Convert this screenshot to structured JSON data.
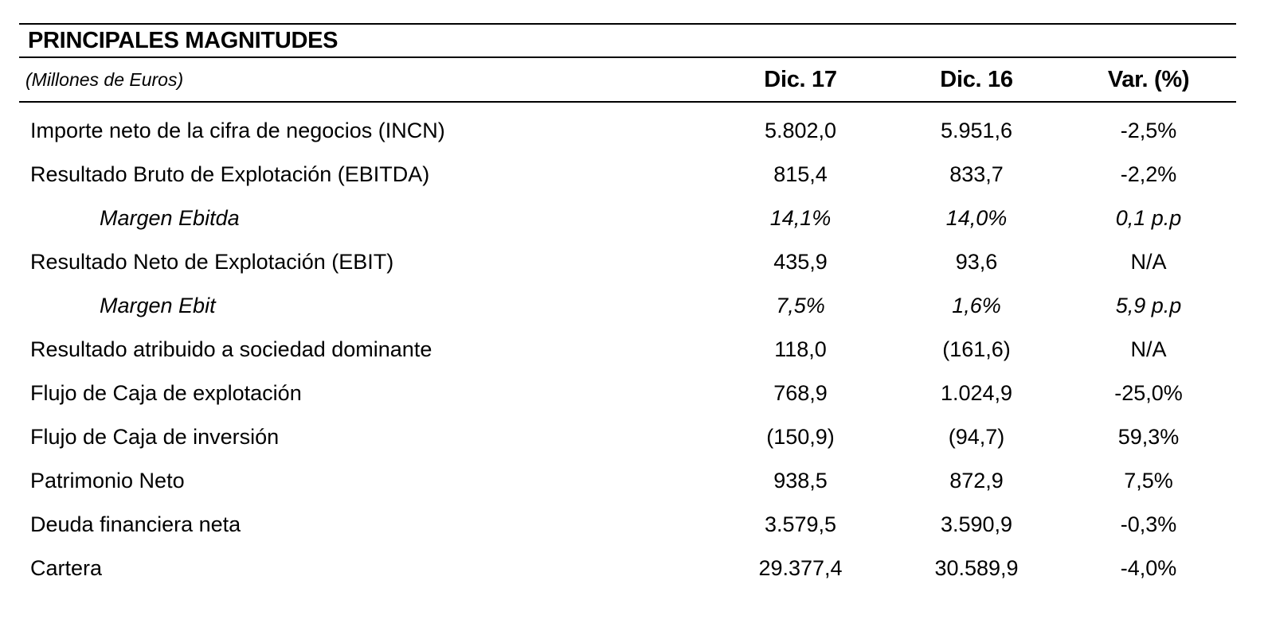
{
  "table": {
    "title": "PRINCIPALES MAGNITUDES",
    "subtitle": "(Millones de Euros)",
    "columns": [
      "Dic. 17",
      "Dic. 16",
      "Var. (%)"
    ],
    "colors": {
      "text": "#000000",
      "rule": "#000000",
      "background": "#ffffff"
    },
    "rows": [
      {
        "label": "Importe neto de la cifra de negocios (INCN)",
        "dic17": "5.802,0",
        "dic16": "5.951,6",
        "var": "-2,5%",
        "style": "normal"
      },
      {
        "label": "Resultado Bruto de Explotación (EBITDA)",
        "dic17": "815,4",
        "dic16": "833,7",
        "var": "-2,2%",
        "style": "normal"
      },
      {
        "label": "Margen Ebitda",
        "dic17": "14,1%",
        "dic16": "14,0%",
        "var": "0,1 p.p",
        "style": "italic-indent"
      },
      {
        "label": "Resultado Neto de Explotación (EBIT)",
        "dic17": "435,9",
        "dic16": "93,6",
        "var": "N/A",
        "style": "normal"
      },
      {
        "label": "Margen Ebit",
        "dic17": "7,5%",
        "dic16": "1,6%",
        "var": "5,9 p.p",
        "style": "italic-indent"
      },
      {
        "label": "Resultado atribuido a sociedad dominante",
        "dic17": "118,0",
        "dic16": "(161,6)",
        "var": "N/A",
        "style": "normal"
      },
      {
        "label": "Flujo de Caja de explotación",
        "dic17": "768,9",
        "dic16": "1.024,9",
        "var": "-25,0%",
        "style": "normal"
      },
      {
        "label": "Flujo de Caja de inversión",
        "dic17": "(150,9)",
        "dic16": "(94,7)",
        "var": "59,3%",
        "style": "normal"
      },
      {
        "label": "Patrimonio Neto",
        "dic17": "938,5",
        "dic16": "872,9",
        "var": "7,5%",
        "style": "normal"
      },
      {
        "label": "Deuda financiera neta",
        "dic17": "3.579,5",
        "dic16": "3.590,9",
        "var": "-0,3%",
        "style": "normal"
      },
      {
        "label": "Cartera",
        "dic17": "29.377,4",
        "dic16": "30.589,9",
        "var": "-4,0%",
        "style": "normal"
      }
    ]
  }
}
